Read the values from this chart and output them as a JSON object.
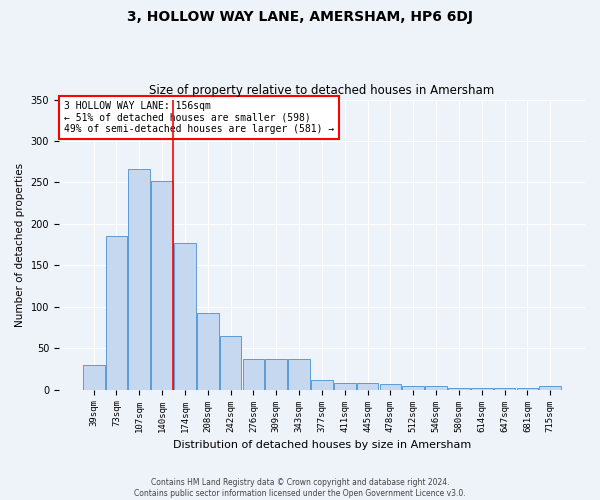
{
  "title": "3, HOLLOW WAY LANE, AMERSHAM, HP6 6DJ",
  "subtitle": "Size of property relative to detached houses in Amersham",
  "xlabel": "Distribution of detached houses by size in Amersham",
  "ylabel": "Number of detached properties",
  "bar_labels": [
    "39sqm",
    "73sqm",
    "107sqm",
    "140sqm",
    "174sqm",
    "208sqm",
    "242sqm",
    "276sqm",
    "309sqm",
    "343sqm",
    "377sqm",
    "411sqm",
    "445sqm",
    "478sqm",
    "512sqm",
    "546sqm",
    "580sqm",
    "614sqm",
    "647sqm",
    "681sqm",
    "715sqm"
  ],
  "bar_heights": [
    30,
    186,
    266,
    252,
    177,
    93,
    65,
    37,
    37,
    37,
    12,
    8,
    8,
    7,
    5,
    5,
    2,
    2,
    2,
    2,
    5
  ],
  "bar_color": "#c5d8f0",
  "bar_edge_color": "#5b9bd5",
  "vline_x": 3.47,
  "vline_color": "red",
  "annotation_text": "3 HOLLOW WAY LANE: 156sqm\n← 51% of detached houses are smaller (598)\n49% of semi-detached houses are larger (581) →",
  "annotation_box_color": "white",
  "annotation_box_edge_color": "red",
  "ylim": [
    0,
    350
  ],
  "yticks": [
    0,
    50,
    100,
    150,
    200,
    250,
    300,
    350
  ],
  "footer_line1": "Contains HM Land Registry data © Crown copyright and database right 2024.",
  "footer_line2": "Contains public sector information licensed under the Open Government Licence v3.0.",
  "bg_color": "#eef2f9",
  "plot_bg_color": "#eef2f9",
  "grid_color": "#ffffff",
  "title_fontsize": 10,
  "subtitle_fontsize": 8.5,
  "ylabel_fontsize": 7.5,
  "xlabel_fontsize": 8,
  "tick_fontsize": 6.5,
  "annotation_fontsize": 7,
  "footer_fontsize": 5.5
}
